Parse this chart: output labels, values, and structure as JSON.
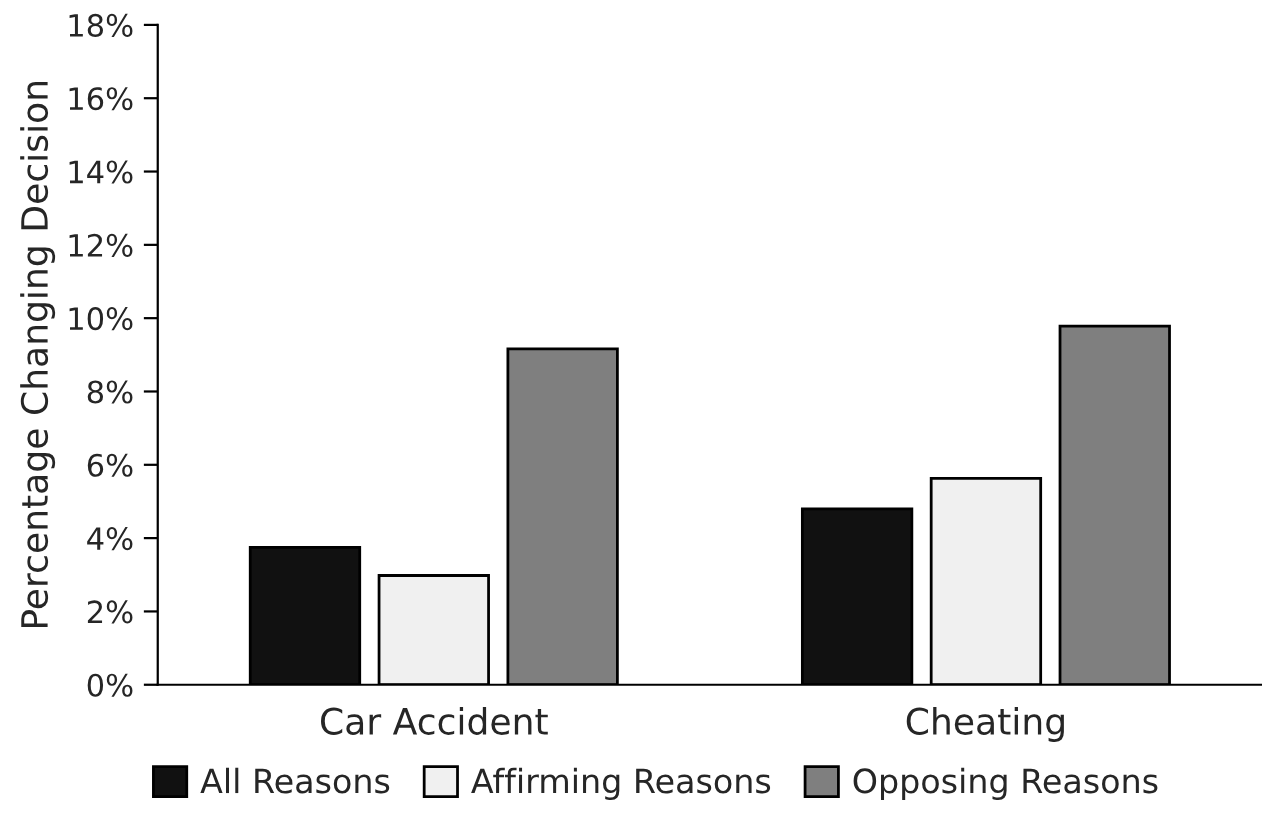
{
  "chart_data": {
    "type": "bar",
    "ylabel": "Percentage Changing Decision",
    "categories": [
      "Car Accident",
      "Cheating"
    ],
    "series": [
      {
        "name": "All Reasons",
        "color": "#111111",
        "values": [
          3.75,
          4.8
        ]
      },
      {
        "name": "Affirming Reasons",
        "color": "#f0f0f0",
        "values": [
          2.98,
          5.63
        ]
      },
      {
        "name": "Opposing Reasons",
        "color": "#7f7f7f",
        "values": [
          9.16,
          9.78
        ]
      }
    ],
    "ylim": [
      0,
      18
    ],
    "yticks": [
      {
        "value": 0,
        "label": "0%"
      },
      {
        "value": 2,
        "label": "2%"
      },
      {
        "value": 4,
        "label": "4%"
      },
      {
        "value": 6,
        "label": "6%"
      },
      {
        "value": 8,
        "label": "8%"
      },
      {
        "value": 10,
        "label": "10%"
      },
      {
        "value": 12,
        "label": "12%"
      },
      {
        "value": 14,
        "label": "14%"
      },
      {
        "value": 16,
        "label": "16%"
      },
      {
        "value": 18,
        "label": "18%"
      }
    ],
    "grid": false,
    "legend": "bottom"
  }
}
